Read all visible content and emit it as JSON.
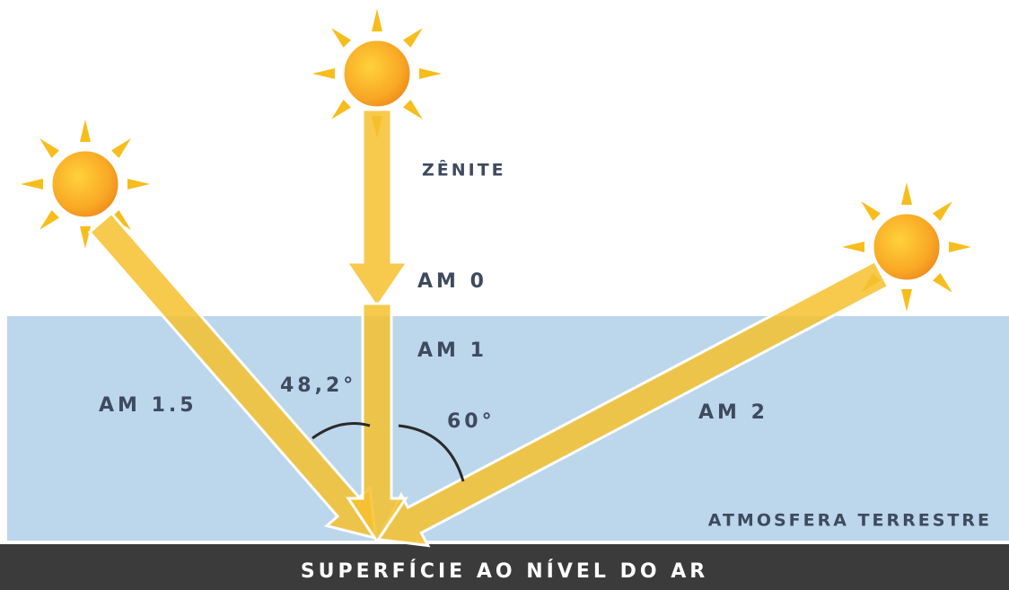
{
  "labels": {
    "zenith": "ZÊNITE",
    "am0": "AM 0",
    "am1": "AM 1",
    "am15": "AM 1.5",
    "am2": "AM 2",
    "angle1": "48,2°",
    "angle2": "60°",
    "atmosphere": "ATMOSFERA TERRESTRE",
    "surface": "SUPERFÍCIE AO NÍVEL DO AR"
  }
}
